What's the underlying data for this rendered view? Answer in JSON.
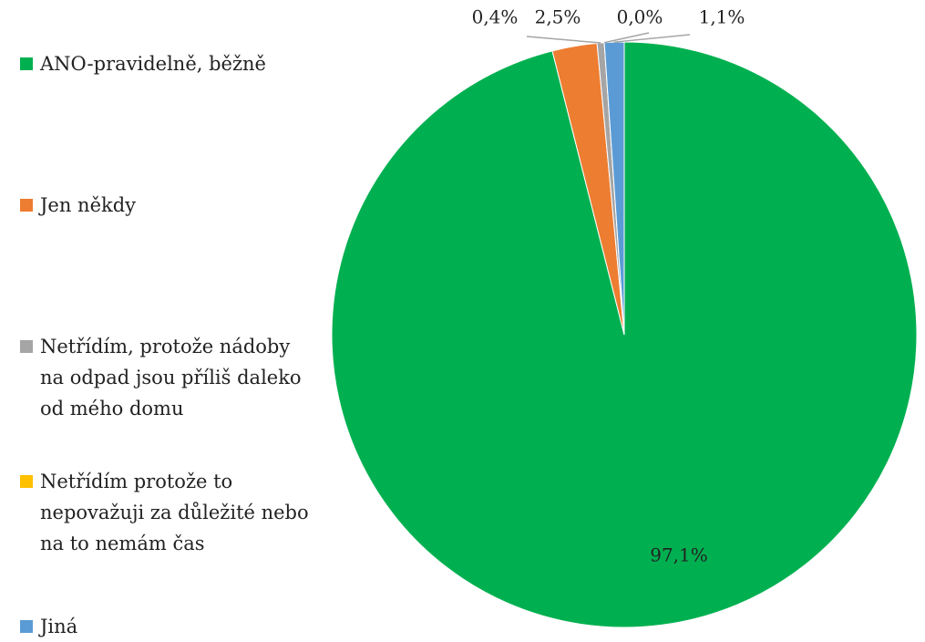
{
  "chart_data": {
    "type": "pie",
    "categories": [
      "ANO-pravidelně, běžně",
      "Jen někdy",
      "Netřídím, protože nádoby na odpad jsou příliš daleko od mého domu",
      "Netřídím protože to nepovažuji za důležité nebo na to nemám čas",
      "Jiná"
    ],
    "values": [
      97.1,
      2.5,
      0.4,
      0.0,
      1.1
    ],
    "value_labels": [
      "97,1%",
      "2,5%",
      "0,4%",
      "0,0%",
      "1,1%"
    ],
    "colors": [
      "#00b050",
      "#ed7d31",
      "#a5a5a5",
      "#ffc000",
      "#5b9bd5"
    ],
    "legend": "left"
  }
}
